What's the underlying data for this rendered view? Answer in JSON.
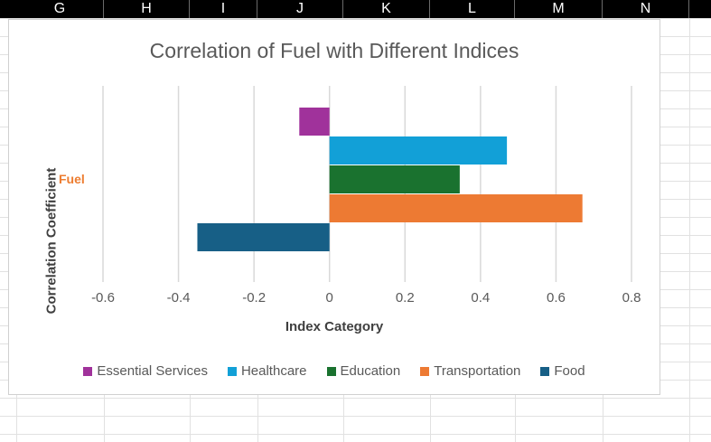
{
  "spreadsheet": {
    "columns": [
      "G",
      "H",
      "I",
      "J",
      "K",
      "L",
      "M",
      "N"
    ]
  },
  "chart_data": {
    "type": "bar",
    "orientation": "horizontal",
    "title": "Correlation of Fuel with Different Indices",
    "xlabel": "Index Category",
    "ylabel": "Correlation Coefficient",
    "categories": [
      "Fuel"
    ],
    "xlim": [
      -0.6,
      0.8
    ],
    "xticks": [
      "-0.6",
      "-0.4",
      "-0.2",
      "0",
      "0.2",
      "0.4",
      "0.6",
      "0.8"
    ],
    "grid": true,
    "legend_position": "bottom",
    "series": [
      {
        "name": "Essential Services",
        "values": [
          -0.08
        ],
        "color": "#a0329b"
      },
      {
        "name": "Healthcare",
        "values": [
          0.47
        ],
        "color": "#12a0d7"
      },
      {
        "name": "Education",
        "values": [
          0.345
        ],
        "color": "#1a722f"
      },
      {
        "name": "Transportation",
        "values": [
          0.67
        ],
        "color": "#ed7a33"
      },
      {
        "name": "Food",
        "values": [
          -0.35
        ],
        "color": "#175f86"
      }
    ]
  }
}
